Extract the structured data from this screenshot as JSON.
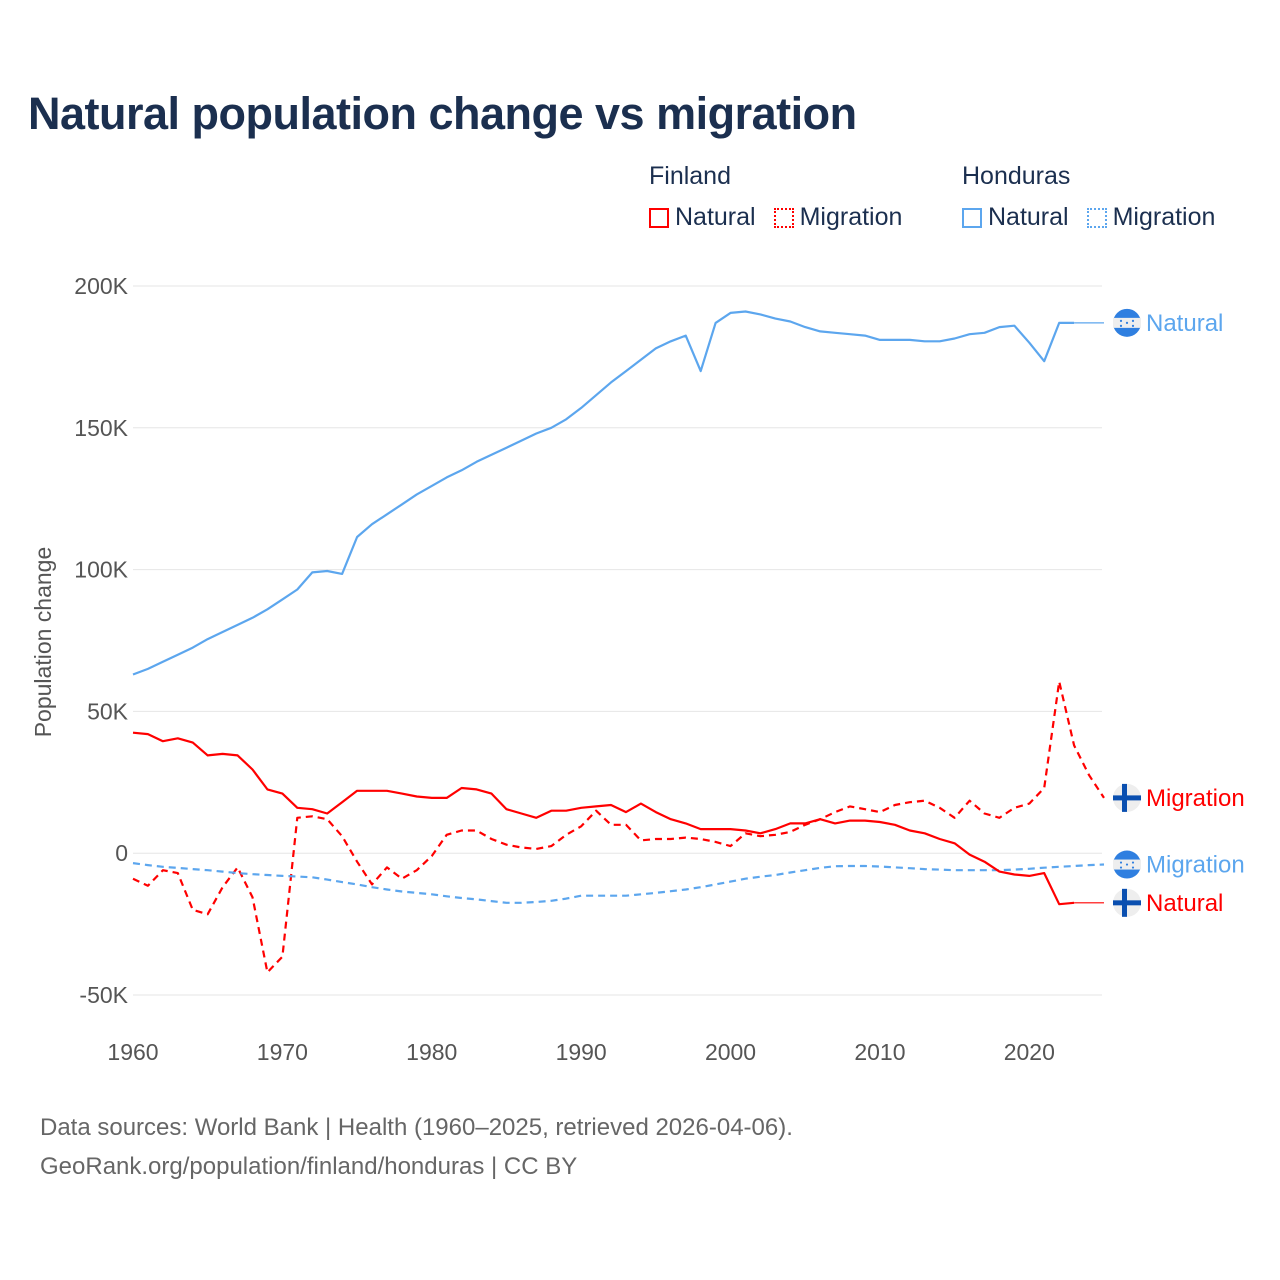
{
  "chart_data": {
    "type": "line",
    "title": "Natural population change vs migration",
    "xlabel": "",
    "ylabel": "Population change",
    "xlim": [
      1960,
      2025
    ],
    "ylim": [
      -50000,
      200000
    ],
    "grid": true,
    "legend_position": "top-right",
    "x_ticks": [
      1960,
      1970,
      1980,
      1990,
      2000,
      2010,
      2020
    ],
    "x_tick_labels": [
      "1960",
      "1970",
      "1980",
      "1990",
      "2000",
      "2010",
      "2020"
    ],
    "y_ticks": [
      -50000,
      0,
      50000,
      100000,
      150000,
      200000
    ],
    "y_tick_labels": [
      "-50K",
      "0",
      "50K",
      "100K",
      "150K",
      "200K"
    ],
    "legend": [
      {
        "group": "Finland",
        "items": [
          {
            "label": "Natural",
            "color": "#ff0000",
            "style": "solid"
          },
          {
            "label": "Migration",
            "color": "#ff0000",
            "style": "dotted"
          }
        ]
      },
      {
        "group": "Honduras",
        "items": [
          {
            "label": "Natural",
            "color": "#5ca6ee",
            "style": "solid"
          },
          {
            "label": "Migration",
            "color": "#5ca6ee",
            "style": "dotted"
          }
        ]
      }
    ],
    "series": [
      {
        "name": "Honduras Natural",
        "country": "Honduras",
        "label": "Natural",
        "color": "#5ca6ee",
        "dash": false,
        "start_year": 1960,
        "extend_to": 2025,
        "values": [
          63000,
          65000,
          67500,
          70000,
          72500,
          75500,
          78000,
          80500,
          83000,
          86000,
          89500,
          93000,
          99000,
          99500,
          98500,
          111500,
          116000,
          119500,
          123000,
          126500,
          129500,
          132500,
          135000,
          138000,
          140500,
          143000,
          145500,
          148000,
          150000,
          153000,
          157000,
          161500,
          166000,
          170000,
          174000,
          178000,
          180500,
          182500,
          170000,
          187000,
          190500,
          191000,
          190000,
          188500,
          187500,
          185500,
          184000,
          183500,
          183000,
          182500,
          181000,
          181000,
          181000,
          180500,
          180500,
          181500,
          183000,
          183500,
          185500,
          186000,
          180000,
          173500,
          187000,
          187000
        ]
      },
      {
        "name": "Finland Migration",
        "country": "Finland",
        "label": "Migration",
        "color": "#ff0000",
        "dash": true,
        "start_year": 1960,
        "extend_to": 2025,
        "values": [
          -9000,
          -11500,
          -6000,
          -7000,
          -20000,
          -21500,
          -12000,
          -5000,
          -15500,
          -42000,
          -36500,
          12500,
          13000,
          12000,
          6000,
          -3000,
          -11000,
          -5000,
          -9000,
          -6000,
          -1000,
          6500,
          8000,
          8000,
          5000,
          3000,
          2000,
          1500,
          2500,
          6500,
          9500,
          15000,
          10000,
          10000,
          4500,
          5000,
          5000,
          5500,
          5000,
          4000,
          2500,
          7000,
          6000,
          6500,
          7500,
          10000,
          12000,
          14500,
          16500,
          15500,
          14500,
          17000,
          18000,
          18500,
          16000,
          12500,
          18500,
          14000,
          12500,
          16000,
          17500,
          23000,
          60500,
          38000,
          27500,
          19500
        ]
      },
      {
        "name": "Honduras Migration",
        "country": "Honduras",
        "label": "Migration",
        "color": "#5ca6ee",
        "dash": true,
        "start_year": 1960,
        "extend_to": 2025,
        "values": [
          -3500,
          -4200,
          -4800,
          -5200,
          -5600,
          -6000,
          -6500,
          -7000,
          -7400,
          -7700,
          -8000,
          -8200,
          -8500,
          -9300,
          -10200,
          -11000,
          -12000,
          -12800,
          -13500,
          -14000,
          -14500,
          -15200,
          -15800,
          -16300,
          -16900,
          -17500,
          -17500,
          -17200,
          -16800,
          -16000,
          -15000,
          -15000,
          -15000,
          -15000,
          -14500,
          -14000,
          -13400,
          -12800,
          -12000,
          -11000,
          -10000,
          -9000,
          -8300,
          -7700,
          -6800,
          -6000,
          -5200,
          -4600,
          -4500,
          -4500,
          -4700,
          -5000,
          -5300,
          -5600,
          -5800,
          -6000,
          -6000,
          -6000,
          -6000,
          -5800,
          -5500,
          -5100,
          -4800,
          -4500,
          -4200,
          -4000
        ]
      },
      {
        "name": "Finland Natural",
        "country": "Finland",
        "label": "Natural",
        "color": "#ff0000",
        "dash": false,
        "start_year": 1960,
        "extend_to": 2025,
        "values": [
          42500,
          42000,
          39500,
          40500,
          39000,
          34500,
          35000,
          34500,
          29500,
          22500,
          21000,
          16000,
          15500,
          14000,
          18000,
          22000,
          22000,
          22000,
          21000,
          20000,
          19500,
          19500,
          23000,
          22500,
          21000,
          15500,
          14000,
          12500,
          15000,
          15000,
          16000,
          16500,
          17000,
          14500,
          17500,
          14500,
          12000,
          10500,
          8500,
          8500,
          8500,
          8000,
          7000,
          8500,
          10500,
          10500,
          12000,
          10500,
          11500,
          11500,
          11000,
          10000,
          8000,
          7000,
          5000,
          3500,
          -500,
          -3000,
          -6500,
          -7500,
          -8000,
          -7000,
          -18000,
          -17500
        ]
      }
    ]
  },
  "footer": {
    "line1": "Data sources: World Bank | Health (1960–2025, retrieved 2026-04-06).",
    "line2": "GeoRank.org/population/finland/honduras | CC BY"
  }
}
